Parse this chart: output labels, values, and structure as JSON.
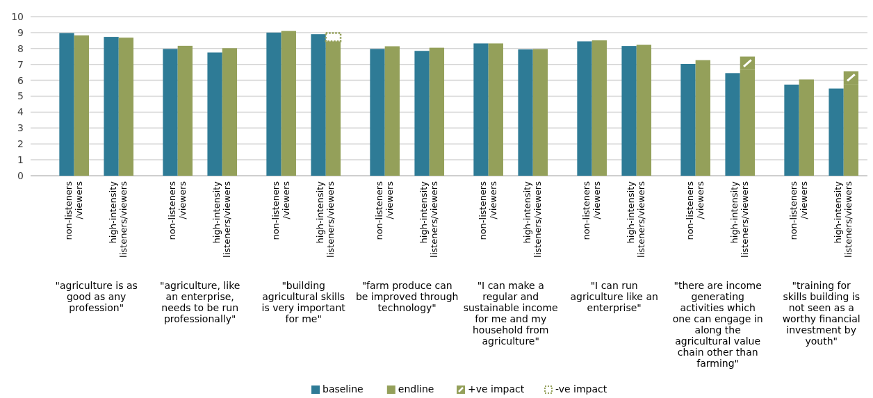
{
  "chart_data": {
    "type": "bar",
    "categories": [
      "non-listeners /viewers",
      "high-intensity listeners/viewers",
      "non-listeners /viewers",
      "high-intensity listeners/viewers",
      "non-listeners /viewers",
      "high-intensity listeners/viewers",
      "non-listeners /viewers",
      "high-intensity listeners/viewers",
      "non-listeners /viewers",
      "high-intensity listeners/viewers",
      "non-listeners /viewers",
      "high-intensity listeners/viewers",
      "non-listeners /viewers",
      "high-intensity listeners/viewers",
      "non-listeners /viewers",
      "high-intensity listeners/viewers"
    ],
    "series": [
      {
        "name": "baseline",
        "color": "#2e7b96",
        "values": [
          8.97,
          8.73,
          7.97,
          7.75,
          9.0,
          8.9,
          7.97,
          7.85,
          8.32,
          7.94,
          8.45,
          8.16,
          7.03,
          6.45,
          5.73,
          5.48
        ]
      },
      {
        "name": "endline",
        "color": "#94a05a",
        "values": [
          8.82,
          8.68,
          8.17,
          8.02,
          9.1,
          8.45,
          8.14,
          8.05,
          8.32,
          7.96,
          8.51,
          8.23,
          7.27,
          6.65,
          6.05,
          5.76
        ]
      },
      {
        "name": "+ve impact",
        "color": "#94a05a",
        "base": [
          null,
          null,
          null,
          null,
          null,
          null,
          null,
          null,
          null,
          null,
          null,
          null,
          null,
          6.65,
          null,
          5.76
        ],
        "values": [
          null,
          null,
          null,
          null,
          null,
          null,
          null,
          null,
          null,
          null,
          null,
          null,
          null,
          0.84,
          null,
          0.81
        ]
      },
      {
        "name": "-ve impact",
        "color": "#94a05a",
        "line_style": "dotted",
        "base": [
          null,
          null,
          null,
          null,
          null,
          8.45,
          null,
          null,
          null,
          null,
          null,
          null,
          null,
          null,
          null,
          null
        ],
        "values": [
          null,
          null,
          null,
          null,
          null,
          0.52,
          null,
          null,
          null,
          null,
          null,
          null,
          null,
          null,
          null,
          null
        ]
      }
    ],
    "annotations": [
      "\"agriculture is as good as any profession\"",
      "\"agriculture, like an enterprise, needs to be run professionally\"",
      "\"building agricultural skills is very important for me\"",
      "\"farm produce can be improved through technology\"",
      "\"I can make a regular and sustainable income for me and my household from agriculture\"",
      "\"I can run agriculture like an enterprise\"",
      "\"there are income generating activities which one can engage in along the agricultural value chain other than farming\"",
      "\"training for skills building is not seen as a worthy financial investment by youth\""
    ],
    "ylim": [
      0,
      10
    ],
    "yticks": [
      0,
      1,
      2,
      3,
      4,
      5,
      6,
      7,
      8,
      9,
      10
    ],
    "grid": "y",
    "legend": "bottom"
  }
}
